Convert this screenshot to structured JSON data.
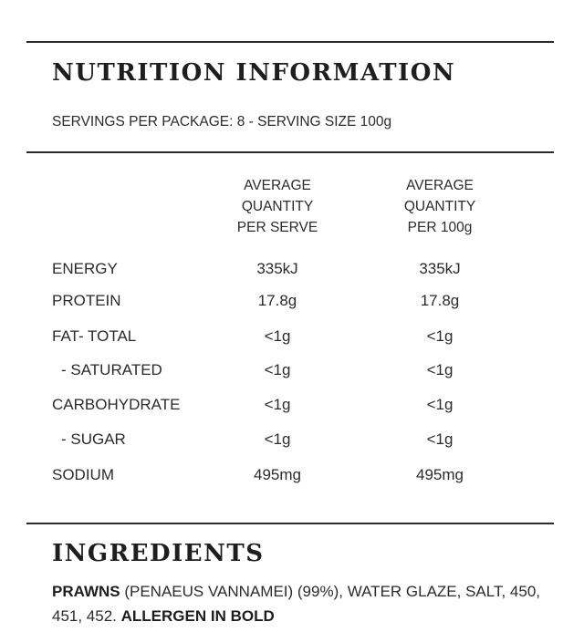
{
  "title": "NUTRITION INFORMATION",
  "servings": "SERVINGS PER PACKAGE: 8 - SERVING SIZE 100g",
  "columns": {
    "per_serve": [
      "AVERAGE",
      "QUANTITY",
      "PER SERVE"
    ],
    "per_100g": [
      "AVERAGE",
      "QUANTITY",
      "PER 100g"
    ]
  },
  "rows": [
    {
      "label": "ENERGY",
      "per_serve": "335kJ",
      "per_100g": "335kJ"
    },
    {
      "label": "PROTEIN",
      "per_serve": "17.8g",
      "per_100g": "17.8g"
    },
    {
      "label": "FAT- TOTAL",
      "per_serve": "<1g",
      "per_100g": "<1g"
    },
    {
      "label": "- SATURATED",
      "per_serve": "<1g",
      "per_100g": "<1g"
    },
    {
      "label": "CARBOHYDRATE",
      "per_serve": "<1g",
      "per_100g": "<1g"
    },
    {
      "label": "- SUGAR",
      "per_serve": "<1g",
      "per_100g": "<1g"
    },
    {
      "label": "SODIUM",
      "per_serve": "495mg",
      "per_100g": "495mg"
    }
  ],
  "ingredients": {
    "title": "INGREDIENTS",
    "allergen_name": "PRAWNS",
    "text_1": " (PENAEUS VANNAMEI) (99%), WATER GLAZE, SALT, 450, 451, 452. ",
    "allergen_note": "ALLERGEN IN BOLD"
  }
}
